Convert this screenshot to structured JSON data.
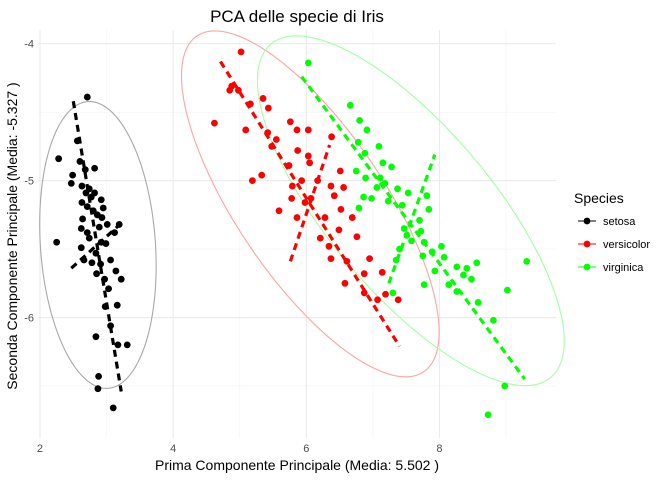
{
  "chart_data": {
    "type": "scatter",
    "title": "PCA delle specie di Iris",
    "xlabel": "Prima Componente Principale (Media: 5.502 )",
    "ylabel": "Seconda Componente Principale (Media: -5.327 )",
    "xlim": [
      1.97,
      9.75
    ],
    "ylim": [
      -6.88,
      -3.9
    ],
    "y_reversed": true,
    "x_ticks": [
      2,
      4,
      6,
      8
    ],
    "x_tick_labels": [
      "2",
      "4",
      "6",
      "8"
    ],
    "y_ticks": [
      -4,
      -5,
      -6
    ],
    "y_tick_labels": [
      "-4",
      "-5",
      "-6"
    ],
    "grid": true,
    "legend": {
      "title": "Species",
      "position": "right",
      "entries": [
        "setosa",
        "versicolor",
        "virginica"
      ]
    },
    "series": [
      {
        "name": "setosa",
        "color": "#000000",
        "ellipse": {
          "center": [
            2.87,
            -5.47
          ],
          "semi_major": 1.05,
          "semi_minor": 0.42,
          "angle_deg": -86
        },
        "pc_axes": [
          {
            "from": [
              2.5,
              -4.42
            ],
            "to": [
              3.22,
              -6.54
            ]
          },
          {
            "from": [
              2.47,
              -5.64
            ],
            "to": [
              3.27,
              -5.29
            ]
          }
        ],
        "points": [
          [
            2.71,
            -4.39
          ],
          [
            2.56,
            -4.71
          ],
          [
            2.28,
            -4.84
          ],
          [
            2.6,
            -4.86
          ],
          [
            2.49,
            -4.96
          ],
          [
            2.68,
            -4.92
          ],
          [
            2.82,
            -4.91
          ],
          [
            2.47,
            -5.02
          ],
          [
            2.63,
            -5.04
          ],
          [
            2.74,
            -5.06
          ],
          [
            2.69,
            -5.09
          ],
          [
            2.77,
            -5.12
          ],
          [
            2.82,
            -5.09
          ],
          [
            2.63,
            -5.16
          ],
          [
            2.71,
            -5.19
          ],
          [
            2.92,
            -5.14
          ],
          [
            2.8,
            -5.22
          ],
          [
            2.95,
            -5.2
          ],
          [
            2.86,
            -5.25
          ],
          [
            2.93,
            -5.27
          ],
          [
            2.64,
            -5.28
          ],
          [
            2.25,
            -5.45
          ],
          [
            2.62,
            -5.35
          ],
          [
            2.71,
            -5.38
          ],
          [
            2.89,
            -5.34
          ],
          [
            3.01,
            -5.32
          ],
          [
            3.19,
            -5.32
          ],
          [
            3.12,
            -5.38
          ],
          [
            2.74,
            -5.42
          ],
          [
            2.92,
            -5.45
          ],
          [
            2.62,
            -5.49
          ],
          [
            2.99,
            -5.46
          ],
          [
            2.84,
            -5.53
          ],
          [
            2.66,
            -5.58
          ],
          [
            2.78,
            -5.6
          ],
          [
            2.91,
            -5.61
          ],
          [
            3.06,
            -5.58
          ],
          [
            3.14,
            -5.66
          ],
          [
            2.85,
            -5.68
          ],
          [
            2.97,
            -5.72
          ],
          [
            3.22,
            -5.72
          ],
          [
            3.03,
            -5.79
          ],
          [
            2.98,
            -5.92
          ],
          [
            3.16,
            -5.91
          ],
          [
            3.06,
            -6.06
          ],
          [
            2.84,
            -6.14
          ],
          [
            3.31,
            -6.2
          ],
          [
            3.17,
            -6.2
          ],
          [
            2.88,
            -6.43
          ],
          [
            2.87,
            -6.52
          ],
          [
            3.1,
            -6.66
          ]
        ]
      },
      {
        "name": "versicolor",
        "color": "#ff0000",
        "ellipse": {
          "center": [
            6.06,
            -5.17
          ],
          "semi_major": 1.48,
          "semi_minor": 0.54,
          "angle_deg": -56
        },
        "pc_axes": [
          {
            "from": [
              4.71,
              -4.13
            ],
            "to": [
              7.4,
              -6.21
            ]
          },
          {
            "from": [
              5.76,
              -5.59
            ],
            "to": [
              6.35,
              -4.74
            ]
          }
        ],
        "points": [
          [
            5.02,
            -4.06
          ],
          [
            4.88,
            -4.31
          ],
          [
            4.85,
            -4.34
          ],
          [
            4.98,
            -4.34
          ],
          [
            5.35,
            -4.4
          ],
          [
            5.16,
            -4.44
          ],
          [
            5.43,
            -4.47
          ],
          [
            4.62,
            -4.58
          ],
          [
            5.76,
            -4.57
          ],
          [
            5.09,
            -4.63
          ],
          [
            5.42,
            -4.65
          ],
          [
            5.86,
            -4.63
          ],
          [
            5.55,
            -4.7
          ],
          [
            6.03,
            -4.63
          ],
          [
            5.48,
            -4.75
          ],
          [
            5.87,
            -4.78
          ],
          [
            6.38,
            -4.68
          ],
          [
            6.03,
            -4.82
          ],
          [
            5.74,
            -4.89
          ],
          [
            6.05,
            -4.87
          ],
          [
            5.33,
            -4.96
          ],
          [
            5.19,
            -5.0
          ],
          [
            6.17,
            -5.0
          ],
          [
            5.79,
            -5.04
          ],
          [
            5.93,
            -5.0
          ],
          [
            6.51,
            -4.93
          ],
          [
            6.37,
            -5.04
          ],
          [
            5.78,
            -5.13
          ],
          [
            6.07,
            -5.13
          ],
          [
            6.56,
            -5.05
          ],
          [
            6.42,
            -5.11
          ],
          [
            5.59,
            -5.22
          ],
          [
            5.98,
            -5.16
          ],
          [
            5.86,
            -5.27
          ],
          [
            6.28,
            -5.27
          ],
          [
            6.52,
            -5.21
          ],
          [
            6.69,
            -5.27
          ],
          [
            6.49,
            -5.36
          ],
          [
            6.21,
            -5.42
          ],
          [
            6.34,
            -5.48
          ],
          [
            6.76,
            -5.41
          ],
          [
            6.37,
            -5.57
          ],
          [
            6.61,
            -5.59
          ],
          [
            6.95,
            -5.57
          ],
          [
            6.87,
            -5.68
          ],
          [
            7.14,
            -5.67
          ],
          [
            6.58,
            -5.75
          ],
          [
            6.87,
            -5.82
          ],
          [
            7.19,
            -5.83
          ],
          [
            7.07,
            -5.87
          ],
          [
            7.38,
            -5.87
          ]
        ]
      },
      {
        "name": "virginica",
        "color": "#00ff00",
        "ellipse": {
          "center": [
            7.57,
            -5.22
          ],
          "semi_major": 1.59,
          "semi_minor": 0.6,
          "angle_deg": -50
        },
        "pc_axes": [
          {
            "from": [
              5.93,
              -4.24
            ],
            "to": [
              9.28,
              -6.45
            ]
          },
          {
            "from": [
              7.24,
              -5.75
            ],
            "to": [
              7.93,
              -4.81
            ]
          }
        ],
        "points": [
          [
            6.03,
            -4.14
          ],
          [
            6.66,
            -4.45
          ],
          [
            6.8,
            -4.56
          ],
          [
            6.91,
            -4.63
          ],
          [
            6.78,
            -4.72
          ],
          [
            7.09,
            -4.75
          ],
          [
            6.88,
            -4.8
          ],
          [
            7.15,
            -4.87
          ],
          [
            7.28,
            -4.9
          ],
          [
            6.75,
            -4.93
          ],
          [
            6.89,
            -4.98
          ],
          [
            7.11,
            -4.98
          ],
          [
            7.18,
            -5.02
          ],
          [
            7.06,
            -5.05
          ],
          [
            7.37,
            -5.06
          ],
          [
            7.53,
            -5.09
          ],
          [
            7.81,
            -5.11
          ],
          [
            6.86,
            -5.12
          ],
          [
            6.98,
            -5.13
          ],
          [
            7.23,
            -5.15
          ],
          [
            7.44,
            -5.18
          ],
          [
            7.84,
            -5.21
          ],
          [
            6.79,
            -5.2
          ],
          [
            7.7,
            -5.29
          ],
          [
            7.47,
            -5.35
          ],
          [
            7.51,
            -5.4
          ],
          [
            7.72,
            -5.37
          ],
          [
            7.58,
            -5.44
          ],
          [
            7.77,
            -5.45
          ],
          [
            8.03,
            -5.48
          ],
          [
            7.4,
            -5.5
          ],
          [
            7.89,
            -5.52
          ],
          [
            7.75,
            -5.55
          ],
          [
            8.07,
            -5.56
          ],
          [
            7.35,
            -5.58
          ],
          [
            8.56,
            -5.6
          ],
          [
            9.31,
            -5.59
          ],
          [
            8.26,
            -5.63
          ],
          [
            8.41,
            -5.64
          ],
          [
            7.93,
            -5.66
          ],
          [
            8.36,
            -5.69
          ],
          [
            8.48,
            -5.72
          ],
          [
            7.77,
            -5.76
          ],
          [
            8.14,
            -5.76
          ],
          [
            8.26,
            -5.81
          ],
          [
            7.3,
            -5.82
          ],
          [
            8.58,
            -5.89
          ],
          [
            9.02,
            -5.8
          ],
          [
            8.81,
            -6.02
          ],
          [
            8.98,
            -6.5
          ],
          [
            8.73,
            -6.71
          ]
        ]
      }
    ]
  }
}
